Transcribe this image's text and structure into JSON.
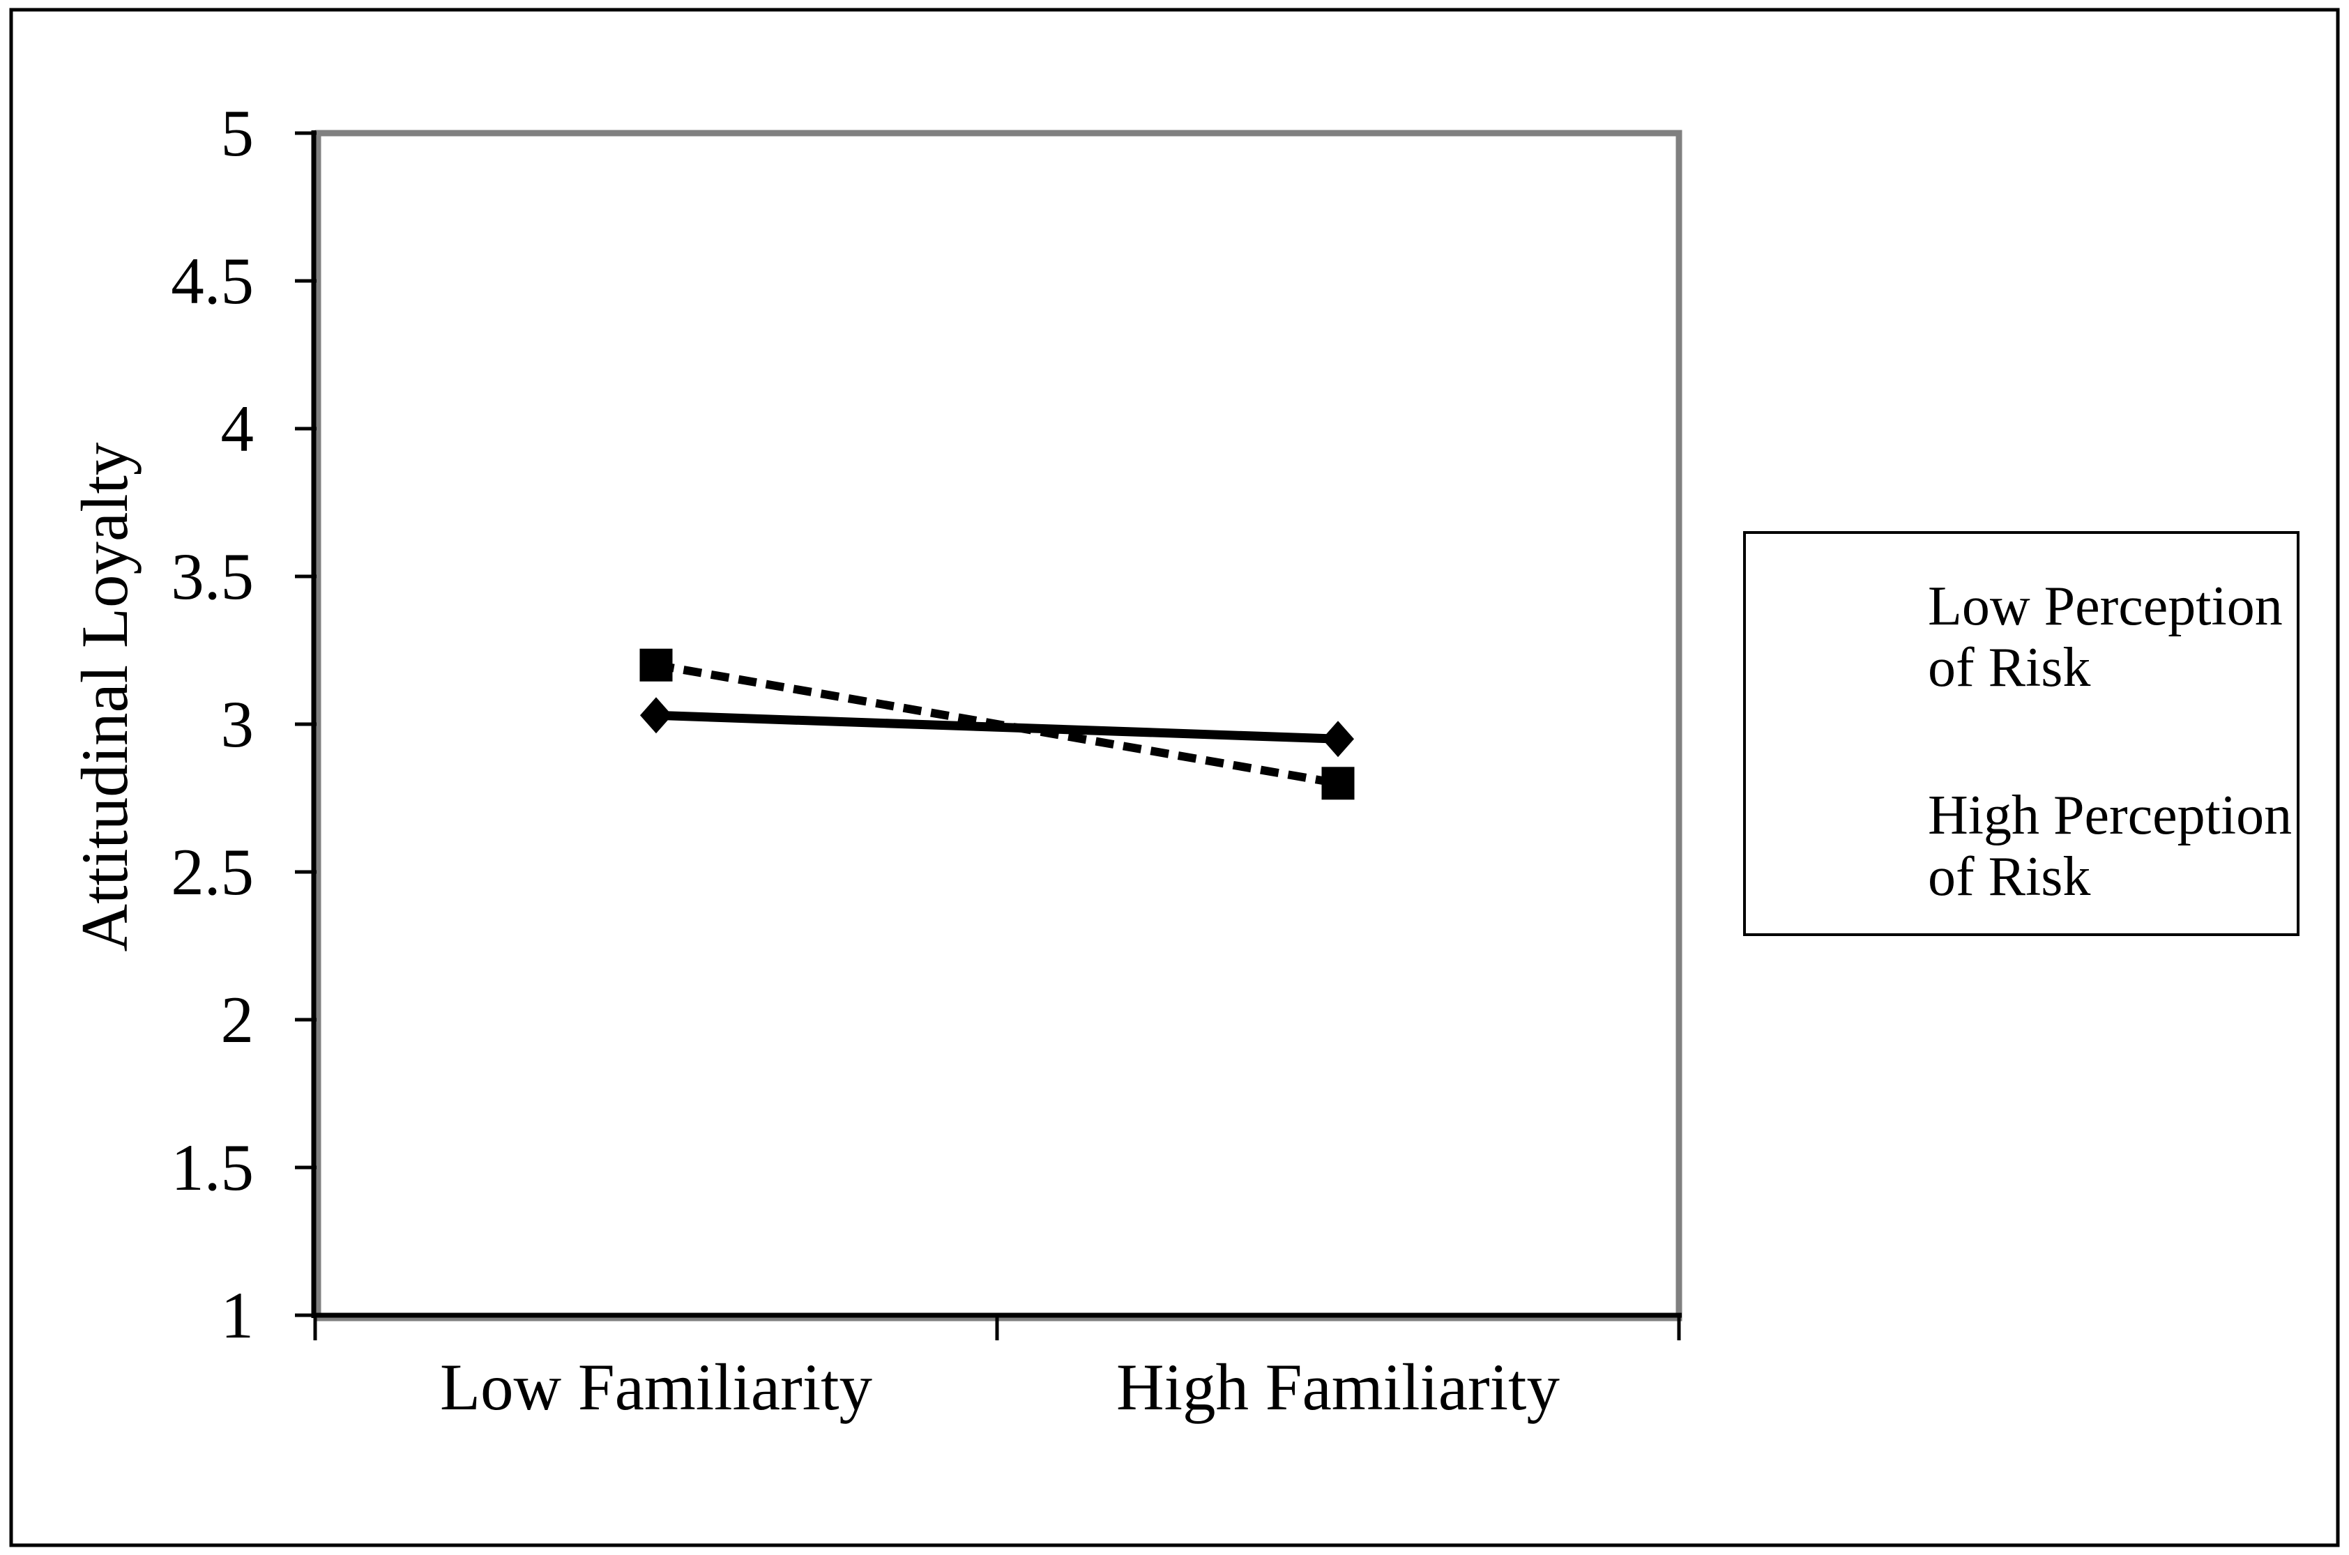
{
  "figure": {
    "background": "#ffffff",
    "outer_border_color": "#000000"
  },
  "chart_data": {
    "type": "line",
    "title": "",
    "xlabel": "",
    "ylabel": "Attitudinal Loyalty",
    "categories": [
      "Low Familiarity",
      "High Familiarity"
    ],
    "series": [
      {
        "name": "Low Perception of Risk",
        "values": [
          3.03,
          2.95
        ],
        "line_style": "solid",
        "marker": "diamond",
        "color": "#000000"
      },
      {
        "name": "High Perception of Risk",
        "values": [
          3.2,
          2.8
        ],
        "line_style": "dashed",
        "marker": "square",
        "color": "#000000"
      }
    ],
    "ylim": [
      1,
      5
    ],
    "ytick_step": 0.5,
    "ytick_labels": [
      "5",
      "4.5",
      "4",
      "3.5",
      "3",
      "2.5",
      "2",
      "1.5",
      "1"
    ],
    "grid": false,
    "legend_position": "right",
    "colors": {
      "line": "#000000",
      "text": "#000000",
      "plot_border": "#808080",
      "axis": "#000000"
    }
  }
}
